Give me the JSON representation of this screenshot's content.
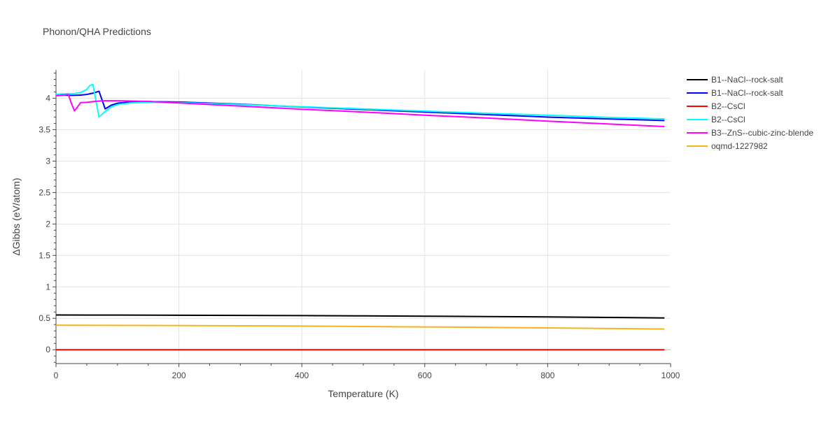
{
  "chart_data": {
    "type": "line",
    "title": "Phonon/QHA Predictions",
    "xlabel": "Temperature (K)",
    "ylabel": "ΔGibbs (eV/atom)",
    "xlim": [
      0,
      1000
    ],
    "ylim": [
      -0.22,
      4.45
    ],
    "x_ticks": [
      0,
      200,
      400,
      600,
      800,
      1000
    ],
    "y_ticks": [
      0,
      0.5,
      1,
      1.5,
      2,
      2.5,
      3,
      3.5,
      4
    ],
    "grid": true,
    "legend_position": "right",
    "series": [
      {
        "name": "B1--NaCl--rock-salt",
        "color": "#000000",
        "x": [
          0,
          100,
          200,
          300,
          400,
          500,
          600,
          700,
          800,
          900,
          990
        ],
        "y": [
          0.553,
          0.551,
          0.549,
          0.546,
          0.543,
          0.539,
          0.534,
          0.528,
          0.522,
          0.514,
          0.506
        ]
      },
      {
        "name": "B1--NaCl--rock-salt",
        "color": "#0000ff",
        "x": [
          0,
          10,
          20,
          30,
          40,
          50,
          60,
          70,
          80,
          90,
          100,
          120,
          150,
          200,
          300,
          400,
          500,
          600,
          700,
          800,
          900,
          990
        ],
        "y": [
          4.05,
          4.055,
          4.045,
          4.045,
          4.05,
          4.06,
          4.08,
          4.11,
          3.83,
          3.89,
          3.92,
          3.94,
          3.945,
          3.94,
          3.905,
          3.86,
          3.82,
          3.78,
          3.74,
          3.7,
          3.67,
          3.645
        ]
      },
      {
        "name": "B2--CsCl",
        "color": "#ff0000",
        "x": [
          0,
          100,
          200,
          300,
          400,
          500,
          600,
          700,
          800,
          900,
          990
        ],
        "y": [
          0,
          0,
          0,
          0,
          0,
          0,
          0,
          0,
          0,
          0,
          0
        ]
      },
      {
        "name": "B2--CsCl",
        "color": "#00ffff",
        "x": [
          0,
          10,
          20,
          30,
          40,
          50,
          55,
          60,
          70,
          80,
          90,
          100,
          120,
          150,
          200,
          300,
          400,
          500,
          600,
          700,
          800,
          900,
          990
        ],
        "y": [
          4.06,
          4.07,
          4.07,
          4.075,
          4.09,
          4.14,
          4.2,
          4.22,
          3.7,
          3.79,
          3.86,
          3.9,
          3.925,
          3.935,
          3.93,
          3.9,
          3.865,
          3.83,
          3.795,
          3.76,
          3.73,
          3.695,
          3.67
        ]
      },
      {
        "name": "B3--ZnS--cubic-zinc-blende",
        "color": "#ff00ff",
        "x": [
          0,
          10,
          20,
          25,
          30,
          35,
          40,
          50,
          60,
          70,
          80,
          100,
          150,
          200,
          300,
          400,
          500,
          600,
          700,
          800,
          900,
          990
        ],
        "y": [
          4.04,
          4.045,
          4.06,
          3.92,
          3.8,
          3.86,
          3.93,
          3.935,
          3.945,
          3.955,
          3.96,
          3.96,
          3.95,
          3.925,
          3.875,
          3.825,
          3.78,
          3.73,
          3.685,
          3.635,
          3.59,
          3.55
        ]
      },
      {
        "name": "oqmd-1227982",
        "color": "#f2b619",
        "x": [
          0,
          100,
          200,
          300,
          400,
          500,
          600,
          700,
          800,
          900,
          990
        ],
        "y": [
          0.39,
          0.388,
          0.385,
          0.381,
          0.376,
          0.37,
          0.363,
          0.355,
          0.347,
          0.338,
          0.329
        ]
      }
    ]
  }
}
